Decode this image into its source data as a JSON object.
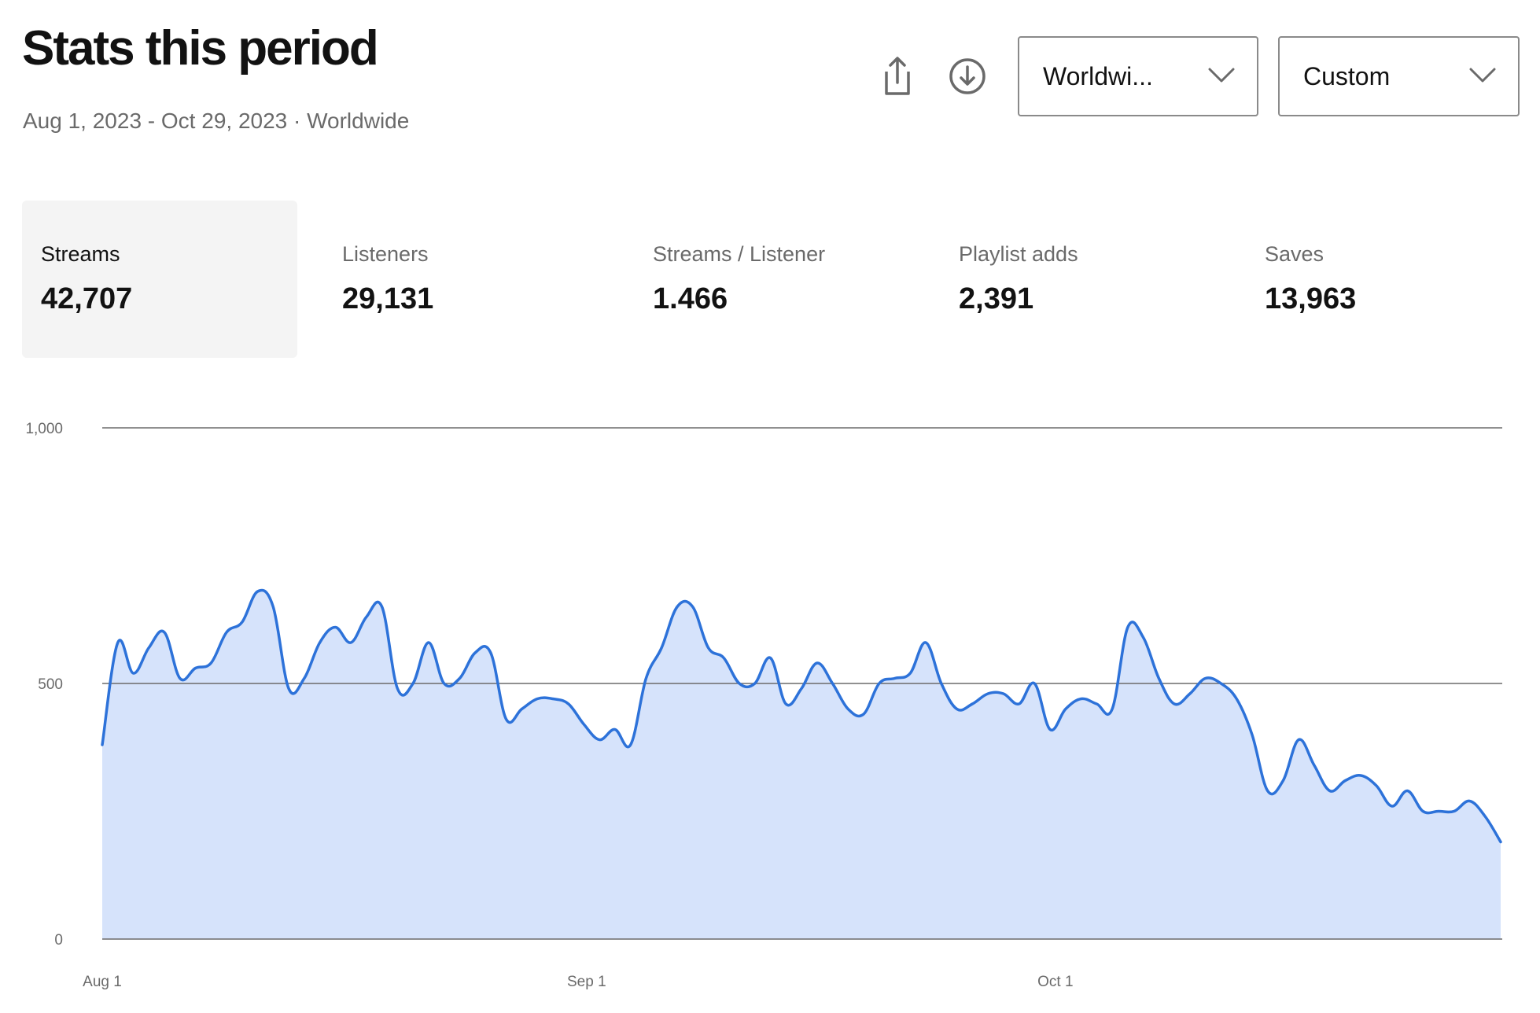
{
  "header": {
    "title": "Stats this period",
    "subtitle": "Aug 1, 2023 - Oct 29, 2023 · Worldwide"
  },
  "toolbar": {
    "share_icon": "share-icon",
    "download_icon": "download-icon",
    "region_dropdown": {
      "value": "Worldwi...",
      "icon": "chevron-down-icon"
    },
    "period_dropdown": {
      "value": "Custom",
      "icon": "chevron-down-icon"
    }
  },
  "metrics": [
    {
      "label": "Streams",
      "value": "42,707",
      "selected": true
    },
    {
      "label": "Listeners",
      "value": "29,131",
      "selected": false
    },
    {
      "label": "Streams / Listener",
      "value": "1.466",
      "selected": false
    },
    {
      "label": "Playlist adds",
      "value": "2,391",
      "selected": false
    },
    {
      "label": "Saves",
      "value": "13,963",
      "selected": false
    }
  ],
  "colors": {
    "line": "#2d72d9",
    "fill": "#d6e3fb",
    "grid": "#6b6b6b",
    "selected_card": "#f4f4f4"
  },
  "chart_data": {
    "type": "area",
    "ylim": [
      0,
      1000
    ],
    "y_ticks": [
      "0",
      "500",
      "1,000"
    ],
    "y_tick_values": [
      0,
      500,
      1000
    ],
    "x_ticks": [
      {
        "label": "Aug 1",
        "date": "2023-08-01"
      },
      {
        "label": "Sep 1",
        "date": "2023-09-01"
      },
      {
        "label": "Oct 1",
        "date": "2023-10-01"
      }
    ],
    "x_start": "2023-08-01",
    "x_end": "2023-10-29",
    "grid": true,
    "series": [
      {
        "values": [
          380,
          580,
          520,
          570,
          600,
          510,
          530,
          540,
          600,
          620,
          680,
          650,
          490,
          510,
          580,
          610,
          580,
          630,
          650,
          490,
          500,
          580,
          500,
          510,
          560,
          560,
          430,
          450,
          470,
          470,
          460,
          420,
          390,
          410,
          380,
          510,
          570,
          650,
          650,
          570,
          550,
          500,
          500,
          550,
          460,
          490,
          540,
          500,
          450,
          440,
          500,
          510,
          520,
          580,
          500,
          450,
          460,
          480,
          480,
          460,
          500,
          410,
          450,
          470,
          460,
          450,
          610,
          590,
          510,
          460,
          480,
          510,
          500,
          470,
          400,
          290,
          310,
          390,
          340,
          290,
          310,
          320,
          300,
          260,
          290,
          250,
          250,
          250,
          270,
          240,
          190
        ]
      }
    ]
  }
}
